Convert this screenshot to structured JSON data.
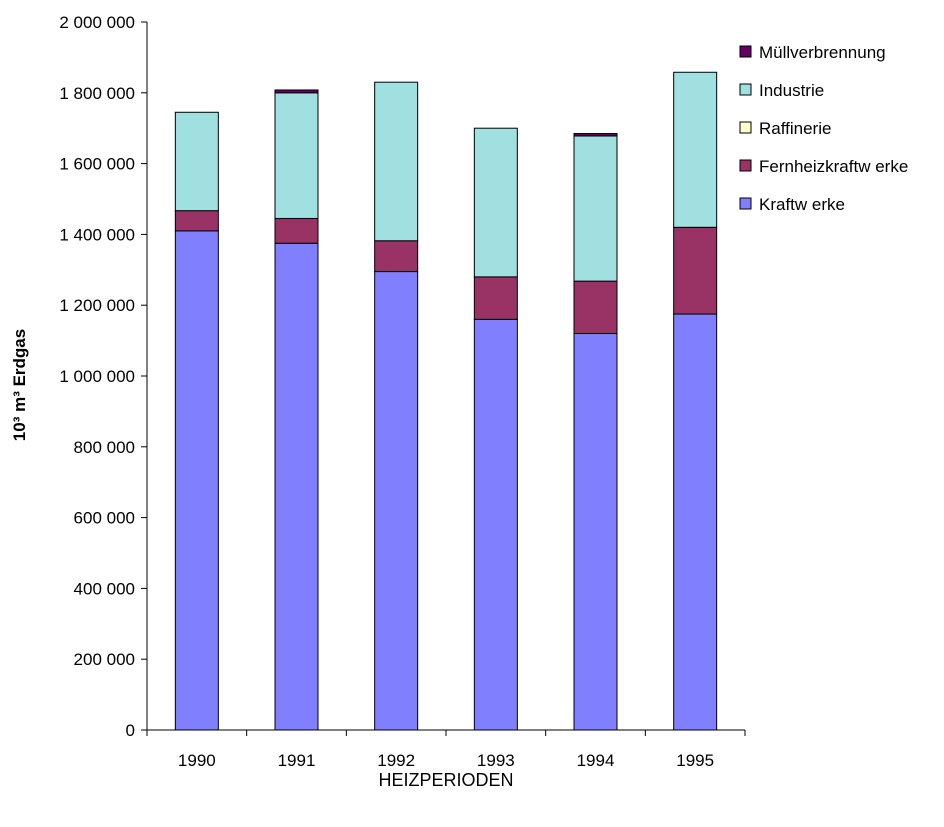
{
  "chart_data": {
    "type": "bar",
    "stacked": true,
    "categories": [
      "1990",
      "1991",
      "1992",
      "1993",
      "1994",
      "1995"
    ],
    "series": [
      {
        "name": "Kraftw erke",
        "color": "#8080ff",
        "values": [
          1410000,
          1375000,
          1295000,
          1160000,
          1120000,
          1175000
        ]
      },
      {
        "name": "Fernheizkraftw erke",
        "color": "#993366",
        "values": [
          57000,
          70000,
          87000,
          120000,
          148000,
          245000
        ]
      },
      {
        "name": "Raffinerie",
        "color": "#ffffcc",
        "values": [
          0,
          0,
          0,
          0,
          0,
          0
        ]
      },
      {
        "name": "Industrie",
        "color": "#a0e0e0",
        "values": [
          278000,
          355000,
          448000,
          420000,
          410000,
          438000
        ]
      },
      {
        "name": "Müllverbrennung",
        "color": "#660066",
        "values": [
          0,
          8000,
          0,
          0,
          7000,
          0
        ]
      }
    ],
    "legend_order": [
      "Müllverbrennung",
      "Industrie",
      "Raffinerie",
      "Fernheizkraftw erke",
      "Kraftw erke"
    ],
    "ylim": [
      0,
      2000000
    ],
    "yticks": [
      0,
      200000,
      400000,
      600000,
      800000,
      1000000,
      1200000,
      1400000,
      1600000,
      1800000,
      2000000
    ],
    "ytick_labels": [
      "0",
      "200 000",
      "400 000",
      "600 000",
      "800 000",
      "1 000 000",
      "1 200 000",
      "1 400 000",
      "1 600 000",
      "1 800 000",
      "2 000 000"
    ],
    "xlabel": "HEIZPERIODEN",
    "ylabel": "10³ m³ Erdgas",
    "title": "",
    "grid": false,
    "legend_position": "right"
  }
}
